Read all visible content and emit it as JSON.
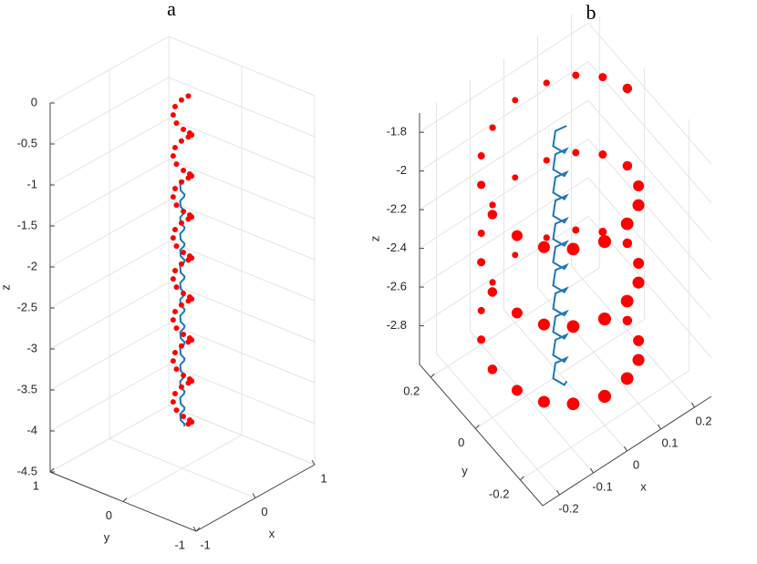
{
  "chart_data": [
    {
      "type": "scatter3d",
      "title": "a",
      "xlabel": "x",
      "ylabel": "y",
      "zlabel": "z",
      "xlim": [
        -1,
        1
      ],
      "ylim": [
        -1,
        1
      ],
      "zlim": [
        -4.5,
        0
      ],
      "xticks": [
        -1,
        0,
        1
      ],
      "yticks": [
        -1,
        0,
        1
      ],
      "zticks": [
        0,
        -0.5,
        -1,
        -1.5,
        -2,
        -2.5,
        -3,
        -3.5,
        -4,
        -4.5
      ],
      "grid": true,
      "series": [
        {
          "style": "line",
          "color": "#1f77b4",
          "x": [
            0.03,
            0,
            -0.03,
            0,
            0.03,
            0,
            -0.03,
            0,
            0.03,
            0,
            -0.03,
            0,
            0.03,
            0,
            -0.03,
            0,
            0.03,
            0,
            -0.03,
            0,
            0.03,
            0,
            -0.03,
            0,
            0.03,
            0,
            -0.03,
            0,
            0.03,
            0,
            -0.03,
            0,
            0.03,
            0,
            -0.03,
            0,
            0.03,
            0,
            -0.03,
            0,
            0.03,
            0,
            -0.03,
            0,
            0.03,
            0,
            -0.03,
            0,
            0.03,
            0,
            -0.03,
            0,
            0.03,
            0,
            -0.03,
            0,
            0.03,
            0,
            -0.03,
            0,
            0.03
          ],
          "y": [
            0,
            0.03,
            0,
            -0.03,
            0,
            0.03,
            0,
            -0.03,
            0,
            0.03,
            0,
            -0.03,
            0,
            0.03,
            0,
            -0.03,
            0,
            0.03,
            0,
            -0.03,
            0,
            0.03,
            0,
            -0.03,
            0,
            0.03,
            0,
            -0.03,
            0,
            0.03,
            0,
            -0.03,
            0,
            0.03,
            0,
            -0.03,
            0,
            0.03,
            0,
            -0.03,
            0,
            0.03,
            0,
            -0.03,
            0,
            0.03,
            0,
            -0.03,
            0,
            0.03,
            0,
            -0.03,
            0,
            0.03,
            0,
            -0.03,
            0,
            0.03,
            0,
            -0.03,
            0
          ],
          "z": [
            -1,
            -1.05,
            -1.1,
            -1.15,
            -1.2,
            -1.25,
            -1.3,
            -1.35,
            -1.4,
            -1.45,
            -1.5,
            -1.55,
            -1.6,
            -1.65,
            -1.7,
            -1.75,
            -1.8,
            -1.85,
            -1.9,
            -1.95,
            -2,
            -2.05,
            -2.1,
            -2.15,
            -2.2,
            -2.25,
            -2.3,
            -2.35,
            -2.4,
            -2.45,
            -2.5,
            -2.55,
            -2.6,
            -2.65,
            -2.7,
            -2.75,
            -2.8,
            -2.85,
            -2.9,
            -2.95,
            -3,
            -3.05,
            -3.1,
            -3.15,
            -3.2,
            -3.25,
            -3.3,
            -3.35,
            -3.4,
            -3.45,
            -3.5,
            -3.55,
            -3.6,
            -3.65,
            -3.7,
            -3.75,
            -3.8,
            -3.85,
            -3.9,
            -3.95,
            -4
          ]
        },
        {
          "style": "markers",
          "color": "#ff0000",
          "x": [
            0.1,
            0.07,
            0,
            -0.07,
            -0.1,
            -0.07,
            0,
            0.07,
            0.1,
            0.07,
            0,
            -0.07,
            -0.1,
            -0.07,
            0,
            0.07,
            0.1,
            0.07,
            0,
            -0.07,
            -0.1,
            -0.07,
            0,
            0.07,
            0.1,
            0.07,
            0,
            -0.07,
            -0.1,
            -0.07,
            0,
            0.07,
            0.1,
            0.07,
            0,
            -0.07,
            -0.1,
            -0.07,
            0,
            0.07,
            0.1,
            0.07,
            0,
            -0.07,
            -0.1,
            -0.07,
            0,
            0.07,
            0.1,
            0.07,
            0,
            -0.07,
            -0.1,
            -0.07,
            0,
            0.07,
            0.1,
            0.07,
            0,
            -0.07,
            -0.1,
            -0.07,
            0,
            0.07,
            0.1
          ],
          "y": [
            0,
            0.07,
            0.1,
            0.07,
            0,
            -0.07,
            -0.1,
            -0.07,
            0,
            0.07,
            0.1,
            0.07,
            0,
            -0.07,
            -0.1,
            -0.07,
            0,
            0.07,
            0.1,
            0.07,
            0,
            -0.07,
            -0.1,
            -0.07,
            0,
            0.07,
            0.1,
            0.07,
            0,
            -0.07,
            -0.1,
            -0.07,
            0,
            0.07,
            0.1,
            0.07,
            0,
            -0.07,
            -0.1,
            -0.07,
            0,
            0.07,
            0.1,
            0.07,
            0,
            -0.07,
            -0.1,
            -0.07,
            0,
            0.07,
            0.1,
            0.07,
            0,
            -0.07,
            -0.1,
            -0.07,
            0,
            0.07,
            0.1,
            0.07,
            0,
            -0.07,
            -0.1,
            -0.07,
            0
          ],
          "z": [
            0,
            -0.0625,
            -0.125,
            -0.1875,
            -0.25,
            -0.3125,
            -0.375,
            -0.4375,
            -0.5,
            -0.5625,
            -0.625,
            -0.6875,
            -0.75,
            -0.8125,
            -0.875,
            -0.9375,
            -1,
            -1.0625,
            -1.125,
            -1.1875,
            -1.25,
            -1.3125,
            -1.375,
            -1.4375,
            -1.5,
            -1.5625,
            -1.625,
            -1.6875,
            -1.75,
            -1.8125,
            -1.875,
            -1.9375,
            -2,
            -2.0625,
            -2.125,
            -2.1875,
            -2.25,
            -2.3125,
            -2.375,
            -2.4375,
            -2.5,
            -2.5625,
            -2.625,
            -2.6875,
            -2.75,
            -2.8125,
            -2.875,
            -2.9375,
            -3,
            -3.0625,
            -3.125,
            -3.1875,
            -3.25,
            -3.3125,
            -3.375,
            -3.4375,
            -3.5,
            -3.5625,
            -3.625,
            -3.6875,
            -3.75,
            -3.8125,
            -3.875,
            -3.9375,
            -4
          ]
        }
      ]
    },
    {
      "type": "scatter3d",
      "title": "b",
      "xlabel": "x",
      "ylabel": "y",
      "zlabel": "z",
      "xlim": [
        -0.25,
        0.25
      ],
      "ylim": [
        -0.3,
        0.25
      ],
      "zlim": [
        -3,
        -1.7
      ],
      "xticks": [
        -0.2,
        -0.1,
        0,
        0.1,
        0.2
      ],
      "yticks": [
        -0.2,
        0,
        0.2
      ],
      "zticks": [
        -1.8,
        -2,
        -2.2,
        -2.4,
        -2.6,
        -2.8
      ],
      "grid": true,
      "series": [
        {
          "style": "line",
          "color": "#1f77b4",
          "x": [
            0.02,
            0,
            -0.02,
            0,
            0.02,
            0,
            -0.02,
            0,
            0.02,
            0,
            -0.02,
            0,
            0.02,
            0,
            -0.02,
            0,
            0.02,
            0,
            -0.02,
            0,
            0.02,
            0,
            -0.02,
            0,
            0.02,
            0,
            -0.02,
            0,
            0.02,
            0,
            -0.02,
            0,
            0.02,
            0,
            -0.02,
            0,
            0.02,
            0,
            -0.02,
            0,
            0.02,
            0,
            -0.02,
            0,
            0.02
          ],
          "y": [
            0,
            0.02,
            0,
            -0.02,
            0,
            0.02,
            0,
            -0.02,
            0,
            0.02,
            0,
            -0.02,
            0,
            0.02,
            0,
            -0.02,
            0,
            0.02,
            0,
            -0.02,
            0,
            0.02,
            0,
            -0.02,
            0,
            0.02,
            0,
            -0.02,
            0,
            0.02,
            0,
            -0.02,
            0,
            0.02,
            0,
            -0.02,
            0,
            0.02,
            0,
            -0.02,
            0,
            0.02,
            0,
            -0.02,
            0
          ],
          "z": [
            -1.74,
            -1.77,
            -1.8,
            -1.83,
            -1.86,
            -1.89,
            -1.92,
            -1.95,
            -1.98,
            -2.01,
            -2.04,
            -2.07,
            -2.1,
            -2.13,
            -2.16,
            -2.19,
            -2.22,
            -2.25,
            -2.28,
            -2.31,
            -2.34,
            -2.37,
            -2.4,
            -2.43,
            -2.46,
            -2.49,
            -2.52,
            -2.55,
            -2.58,
            -2.61,
            -2.64,
            -2.67,
            -2.7,
            -2.73,
            -2.76,
            -2.79,
            -2.82,
            -2.85,
            -2.88,
            -2.91,
            -2.94,
            -2.97,
            -3,
            -3.03,
            -3.06
          ]
        },
        {
          "style": "markers",
          "color": "#ff0000",
          "x": [
            0.2,
            0.18,
            0.14,
            0.08,
            0,
            -0.08,
            -0.14,
            -0.18,
            -0.2,
            -0.18,
            -0.14,
            -0.08,
            0,
            0.08,
            0.14,
            0.18,
            0.2,
            0.18,
            0.14,
            0.08,
            0,
            -0.08,
            -0.14,
            -0.18,
            -0.2,
            -0.18,
            -0.14,
            -0.08,
            0,
            0.08,
            0.14,
            0.18,
            0.2,
            0.18,
            0.14,
            0.08,
            0,
            -0.08,
            -0.14,
            -0.18,
            -0.2,
            -0.18,
            -0.14,
            -0.08,
            0,
            0.08,
            0.14,
            0.18,
            0.2
          ],
          "y": [
            0,
            0.08,
            0.14,
            0.18,
            0.2,
            0.18,
            0.14,
            0.08,
            0,
            -0.08,
            -0.14,
            -0.18,
            -0.2,
            -0.18,
            -0.14,
            -0.08,
            0,
            0.08,
            0.14,
            0.18,
            0.2,
            0.18,
            0.14,
            0.08,
            0,
            -0.08,
            -0.14,
            -0.18,
            -0.2,
            -0.18,
            -0.14,
            -0.08,
            0,
            0.08,
            0.14,
            0.18,
            0.2,
            0.18,
            0.14,
            0.08,
            0,
            -0.08,
            -0.14,
            -0.18,
            -0.2,
            -0.18,
            -0.14,
            -0.08,
            0
          ],
          "z": [
            -1.75,
            -1.775,
            -1.8,
            -1.825,
            -1.85,
            -1.875,
            -1.9,
            -1.925,
            -1.95,
            -1.975,
            -2,
            -2.025,
            -2.05,
            -2.075,
            -2.1,
            -2.125,
            -2.15,
            -2.175,
            -2.2,
            -2.225,
            -2.25,
            -2.275,
            -2.3,
            -2.325,
            -2.35,
            -2.375,
            -2.4,
            -2.425,
            -2.45,
            -2.475,
            -2.5,
            -2.525,
            -2.55,
            -2.575,
            -2.6,
            -2.625,
            -2.65,
            -2.675,
            -2.7,
            -2.725,
            -2.75,
            -2.775,
            -2.8,
            -2.825,
            -2.85,
            -2.875,
            -2.9,
            -2.925,
            -2.95
          ]
        }
      ]
    }
  ]
}
